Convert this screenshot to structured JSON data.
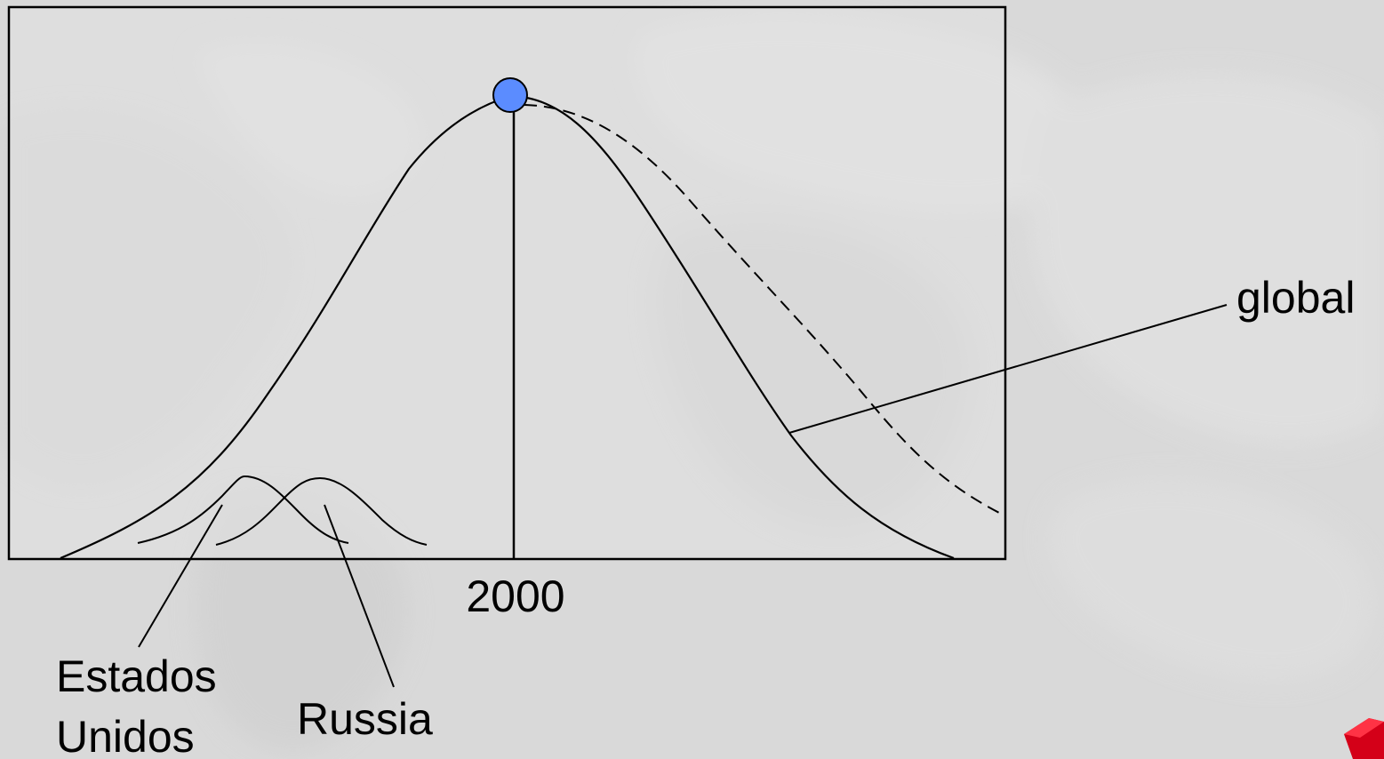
{
  "diagram": {
    "peak_year_label": "2000",
    "labels": {
      "global": "global",
      "us_line1": "Estados",
      "us_line2": "Unidos",
      "russia": "Russia"
    },
    "colors": {
      "background": "#d9d9d9",
      "frame": "#000000",
      "curve": "#000000",
      "peak_marker": "#5b8cff",
      "corner_accent": "#e0001b"
    }
  }
}
